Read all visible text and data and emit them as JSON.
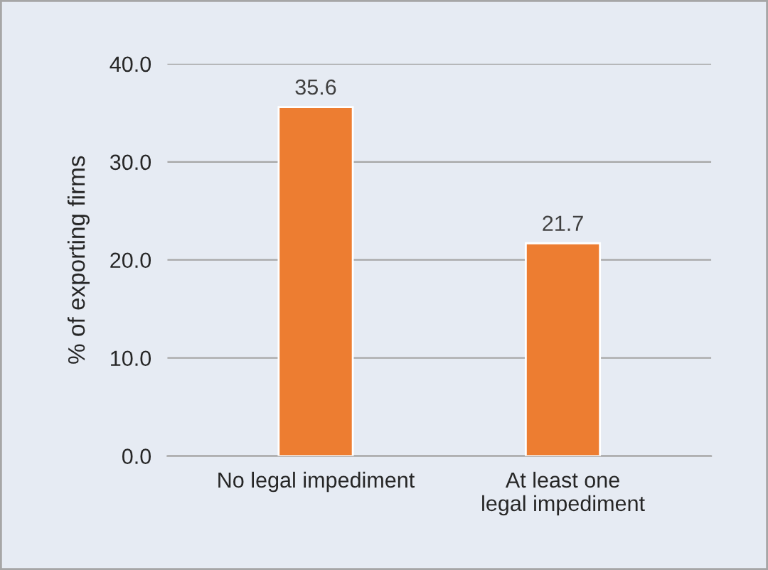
{
  "chart_data": {
    "type": "bar",
    "ylabel": "% of exporting firms",
    "categories": [
      "No legal impediment",
      "At least one\nlegal impediment"
    ],
    "values": [
      35.6,
      21.7
    ],
    "color": "#ed7d31",
    "ylim": [
      0,
      40
    ],
    "yticks": [
      {
        "value": 0,
        "label": "0.0"
      },
      {
        "value": 10,
        "label": "10.0"
      },
      {
        "value": 20,
        "label": "20.0"
      },
      {
        "value": 30,
        "label": "30.0"
      },
      {
        "value": 40,
        "label": "40.0"
      }
    ],
    "grid": "y",
    "data_labels": true,
    "legend": false
  }
}
